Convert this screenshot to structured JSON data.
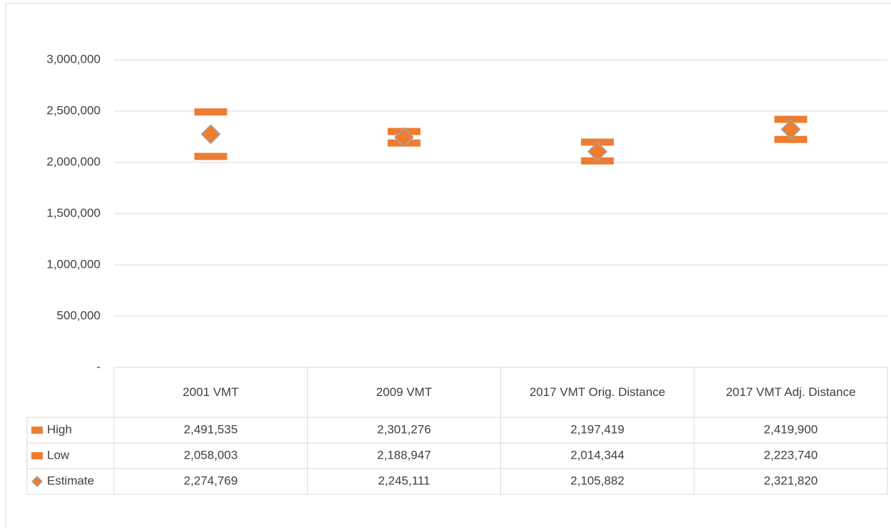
{
  "chart_data": {
    "type": "range",
    "categories": [
      "2001 VMT",
      "2009 VMT",
      "2017 VMT Orig. Distance",
      "2017 VMT Adj. Distance"
    ],
    "series": [
      {
        "name": "High",
        "color": "#ed7d31",
        "marker": "dash",
        "values": [
          2491535,
          2301276,
          2197419,
          2419900
        ],
        "value_labels": [
          "2,491,535",
          "2,301,276",
          "2,197,419",
          "2,419,900"
        ]
      },
      {
        "name": "Low",
        "color": "#ed7d31",
        "marker": "dash",
        "values": [
          2058003,
          2188947,
          2014344,
          2223740
        ],
        "value_labels": [
          "2,058,003",
          "2,188,947",
          "2,014,344",
          "2,223,740"
        ]
      },
      {
        "name": "Estimate",
        "color": "#ed7d31",
        "marker": "diamond",
        "values": [
          2274769,
          2245111,
          2105882,
          2321820
        ],
        "value_labels": [
          "2,274,769",
          "2,245,111",
          "2,105,882",
          "2,321,820"
        ]
      }
    ],
    "ylim": [
      0,
      3000000
    ],
    "yticks": [
      {
        "value": 0,
        "label": "-"
      },
      {
        "value": 500000,
        "label": "500,000"
      },
      {
        "value": 1000000,
        "label": "1,000,000"
      },
      {
        "value": 1500000,
        "label": "1,500,000"
      },
      {
        "value": 2000000,
        "label": "2,000,000"
      },
      {
        "value": 2500000,
        "label": "2,500,000"
      },
      {
        "value": 3000000,
        "label": "3,000,000"
      }
    ],
    "grid": true
  }
}
